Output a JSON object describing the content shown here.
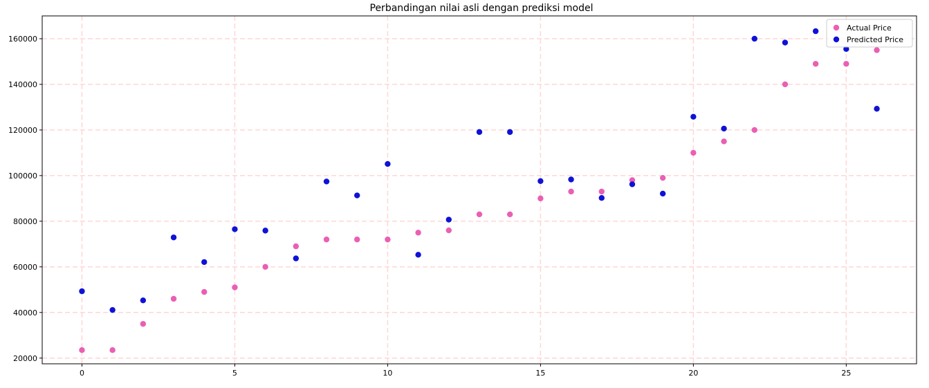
{
  "chart_data": {
    "type": "scatter",
    "title": "Perbandingan nilai asli dengan prediksi model",
    "xlabel": "",
    "ylabel": "",
    "xlim": [
      -1.3,
      27.3
    ],
    "ylim": [
      17500,
      170000
    ],
    "x_ticks": [
      0,
      5,
      10,
      15,
      20,
      25
    ],
    "y_ticks": [
      20000,
      40000,
      60000,
      80000,
      100000,
      120000,
      140000,
      160000
    ],
    "grid": true,
    "grid_color": "#ffd6d6",
    "legend_position": "top-right",
    "series": [
      {
        "name": "Actual Price",
        "color": "#ea5fb4",
        "x": [
          0,
          1,
          2,
          3,
          4,
          5,
          6,
          7,
          8,
          9,
          10,
          11,
          12,
          13,
          14,
          15,
          16,
          17,
          18,
          19,
          20,
          21,
          22,
          23,
          24,
          25,
          26
        ],
        "y": [
          23500,
          23500,
          35000,
          46000,
          49000,
          51000,
          60000,
          69000,
          72000,
          72000,
          72000,
          75000,
          76000,
          83000,
          83000,
          90000,
          93000,
          93000,
          98000,
          99000,
          110000,
          115000,
          120000,
          140000,
          149000,
          149000,
          155000
        ]
      },
      {
        "name": "Predicted Price",
        "color": "#0f12d6",
        "x": [
          0,
          1,
          2,
          3,
          4,
          5,
          6,
          7,
          8,
          9,
          10,
          11,
          12,
          13,
          14,
          15,
          16,
          17,
          18,
          19,
          20,
          21,
          22,
          23,
          24,
          25,
          26
        ],
        "y": [
          49300,
          41100,
          45300,
          72900,
          62100,
          76500,
          75900,
          63700,
          97400,
          91300,
          105100,
          65300,
          80700,
          119100,
          119100,
          97600,
          98300,
          90200,
          96200,
          92100,
          125800,
          120600,
          160000,
          158300,
          163300,
          155500,
          129300
        ]
      }
    ]
  }
}
